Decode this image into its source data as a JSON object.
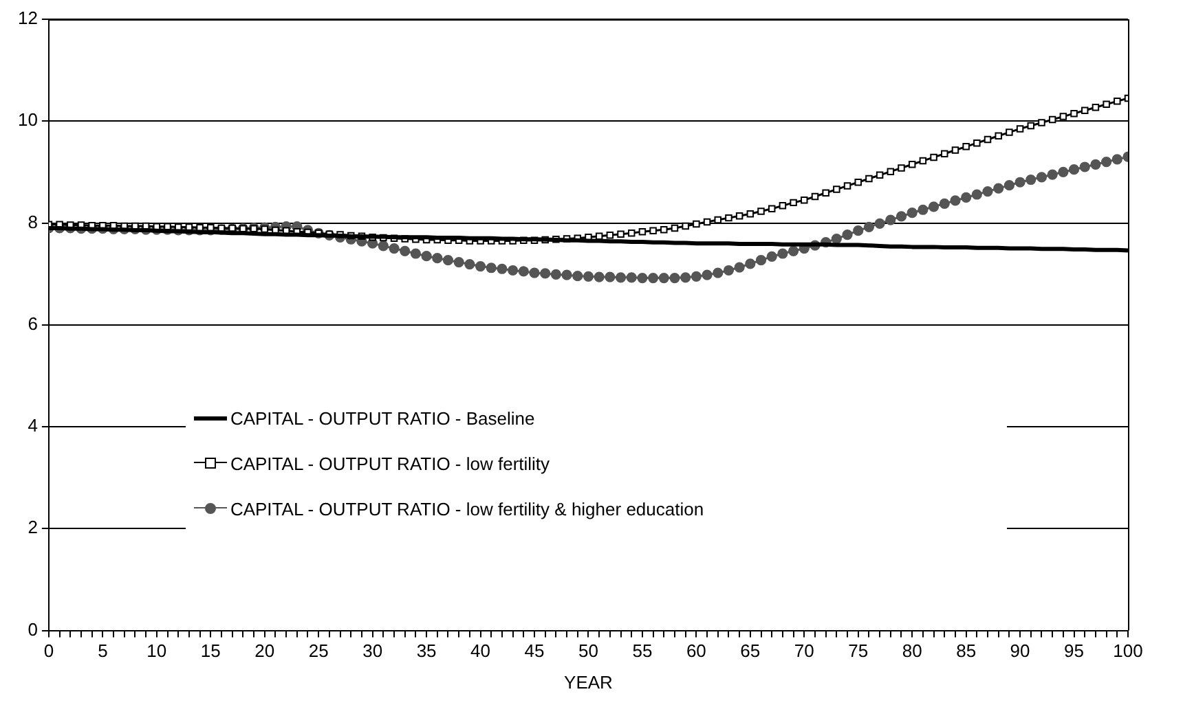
{
  "chart_data": {
    "type": "line",
    "xlabel": "YEAR",
    "x": [
      0,
      1,
      2,
      3,
      4,
      5,
      6,
      7,
      8,
      9,
      10,
      11,
      12,
      13,
      14,
      15,
      16,
      17,
      18,
      19,
      20,
      21,
      22,
      23,
      24,
      25,
      26,
      27,
      28,
      29,
      30,
      31,
      32,
      33,
      34,
      35,
      36,
      37,
      38,
      39,
      40,
      41,
      42,
      43,
      44,
      45,
      46,
      47,
      48,
      49,
      50,
      51,
      52,
      53,
      54,
      55,
      56,
      57,
      58,
      59,
      60,
      61,
      62,
      63,
      64,
      65,
      66,
      67,
      68,
      69,
      70,
      71,
      72,
      73,
      74,
      75,
      76,
      77,
      78,
      79,
      80,
      81,
      82,
      83,
      84,
      85,
      86,
      87,
      88,
      89,
      90,
      91,
      92,
      93,
      94,
      95,
      96,
      97,
      98,
      99,
      100
    ],
    "xlim": [
      0,
      100
    ],
    "xticks": [
      0,
      {
        "value": 1,
        "label": null
      },
      {
        "value": 2,
        "label": null
      },
      {
        "value": 3,
        "label": null
      },
      {
        "value": 4,
        "label": null
      },
      5,
      {
        "value": 6,
        "label": null
      },
      {
        "value": 7,
        "label": null
      },
      {
        "value": 8,
        "label": null
      },
      {
        "value": 9,
        "label": null
      },
      10,
      {
        "value": 11,
        "label": null
      },
      {
        "value": 12,
        "label": null
      },
      {
        "value": 13,
        "label": null
      },
      {
        "value": 14,
        "label": null
      },
      15,
      {
        "value": 16,
        "label": null
      },
      {
        "value": 17,
        "label": null
      },
      {
        "value": 18,
        "label": null
      },
      {
        "value": 19,
        "label": null
      },
      20,
      {
        "value": 21,
        "label": null
      },
      {
        "value": 22,
        "label": null
      },
      {
        "value": 23,
        "label": null
      },
      {
        "value": 24,
        "label": null
      },
      25,
      {
        "value": 26,
        "label": null
      },
      {
        "value": 27,
        "label": null
      },
      {
        "value": 28,
        "label": null
      },
      {
        "value": 29,
        "label": null
      },
      30,
      {
        "value": 31,
        "label": null
      },
      {
        "value": 32,
        "label": null
      },
      {
        "value": 33,
        "label": null
      },
      {
        "value": 34,
        "label": null
      },
      35,
      {
        "value": 36,
        "label": null
      },
      {
        "value": 37,
        "label": null
      },
      {
        "value": 38,
        "label": null
      },
      {
        "value": 39,
        "label": null
      },
      40,
      {
        "value": 41,
        "label": null
      },
      {
        "value": 42,
        "label": null
      },
      {
        "value": 43,
        "label": null
      },
      {
        "value": 44,
        "label": null
      },
      45,
      {
        "value": 46,
        "label": null
      },
      {
        "value": 47,
        "label": null
      },
      {
        "value": 48,
        "label": null
      },
      {
        "value": 49,
        "label": null
      },
      50,
      {
        "value": 51,
        "label": null
      },
      {
        "value": 52,
        "label": null
      },
      {
        "value": 53,
        "label": null
      },
      {
        "value": 54,
        "label": null
      },
      55,
      {
        "value": 56,
        "label": null
      },
      {
        "value": 57,
        "label": null
      },
      {
        "value": 58,
        "label": null
      },
      {
        "value": 59,
        "label": null
      },
      60,
      {
        "value": 61,
        "label": null
      },
      {
        "value": 62,
        "label": null
      },
      {
        "value": 63,
        "label": null
      },
      {
        "value": 64,
        "label": null
      },
      65,
      {
        "value": 66,
        "label": null
      },
      {
        "value": 67,
        "label": null
      },
      {
        "value": 68,
        "label": null
      },
      {
        "value": 69,
        "label": null
      },
      70,
      {
        "value": 71,
        "label": null
      },
      {
        "value": 72,
        "label": null
      },
      {
        "value": 73,
        "label": null
      },
      {
        "value": 74,
        "label": null
      },
      75,
      {
        "value": 76,
        "label": null
      },
      {
        "value": 77,
        "label": null
      },
      {
        "value": 78,
        "label": null
      },
      {
        "value": 79,
        "label": null
      },
      80,
      {
        "value": 81,
        "label": null
      },
      {
        "value": 82,
        "label": null
      },
      {
        "value": 83,
        "label": null
      },
      {
        "value": 84,
        "label": null
      },
      85,
      {
        "value": 86,
        "label": null
      },
      {
        "value": 87,
        "label": null
      },
      {
        "value": 88,
        "label": null
      },
      {
        "value": 89,
        "label": null
      },
      90,
      {
        "value": 91,
        "label": null
      },
      {
        "value": 92,
        "label": null
      },
      {
        "value": 93,
        "label": null
      },
      {
        "value": 94,
        "label": null
      },
      95,
      {
        "value": 96,
        "label": null
      },
      {
        "value": 97,
        "label": null
      },
      {
        "value": 98,
        "label": null
      },
      {
        "value": 99,
        "label": null
      },
      100
    ],
    "ylim": [
      0,
      12
    ],
    "yticks": [
      0,
      2,
      4,
      6,
      8,
      10,
      12
    ],
    "grid": "y",
    "legend": "bottom",
    "series": [
      {
        "name": "CAPITAL - OUTPUT RATIO - Baseline",
        "color": "#000000",
        "marker": "none",
        "values": [
          7.9,
          7.9,
          7.89,
          7.89,
          7.88,
          7.88,
          7.87,
          7.87,
          7.86,
          7.86,
          7.85,
          7.84,
          7.84,
          7.83,
          7.82,
          7.82,
          7.81,
          7.8,
          7.8,
          7.79,
          7.78,
          7.78,
          7.77,
          7.77,
          7.76,
          7.76,
          7.75,
          7.75,
          7.74,
          null,
          7.73,
          7.73,
          7.72,
          7.72,
          7.72,
          7.72,
          7.71,
          7.71,
          7.71,
          7.7,
          7.7,
          7.7,
          7.69,
          7.69,
          7.68,
          7.68,
          null,
          7.67,
          7.66,
          7.66,
          7.65,
          7.65,
          7.64,
          7.64,
          7.63,
          7.63,
          7.62,
          7.62,
          7.61,
          7.61,
          7.6,
          7.6,
          7.6,
          7.6,
          7.59,
          7.59,
          7.59,
          7.59,
          7.58,
          7.58,
          7.58,
          7.58,
          7.58,
          7.57,
          7.57,
          7.57,
          7.56,
          7.55,
          7.54,
          7.54,
          7.53,
          7.53,
          7.53,
          7.52,
          7.52,
          7.52,
          7.51,
          7.51,
          7.51,
          7.5,
          7.5,
          7.5,
          7.49,
          7.49,
          7.49,
          7.48,
          7.48,
          7.47,
          7.47,
          7.47,
          7.46
        ]
      },
      {
        "name": "CAPITAL - OUTPUT RATIO - low fertility",
        "color": "#000000",
        "marker": "square",
        "values": [
          7.97,
          7.97,
          7.96,
          7.96,
          7.95,
          7.95,
          7.95,
          7.94,
          7.94,
          7.94,
          7.93,
          7.93,
          7.92,
          7.92,
          7.91,
          7.91,
          7.9,
          7.9,
          7.89,
          7.89,
          7.88,
          7.86,
          7.85,
          7.83,
          7.82,
          7.8,
          7.78,
          7.77,
          7.75,
          7.74,
          7.72,
          7.71,
          7.7,
          7.69,
          7.68,
          7.67,
          7.67,
          7.66,
          7.66,
          7.65,
          7.65,
          7.65,
          7.65,
          7.65,
          7.66,
          7.66,
          7.67,
          7.68,
          7.69,
          7.7,
          7.72,
          7.74,
          7.76,
          7.78,
          7.8,
          7.83,
          7.85,
          7.87,
          7.9,
          7.94,
          7.98,
          8.02,
          8.06,
          8.1,
          8.14,
          8.18,
          8.23,
          8.28,
          8.34,
          8.4,
          8.45,
          8.52,
          8.59,
          8.66,
          8.73,
          8.8,
          8.87,
          8.94,
          9.01,
          9.08,
          9.15,
          9.22,
          9.29,
          9.36,
          9.43,
          9.5,
          9.57,
          9.64,
          9.71,
          9.78,
          9.85,
          9.91,
          9.97,
          10.03,
          10.09,
          10.15,
          10.21,
          10.27,
          10.33,
          10.39,
          10.45
        ]
      },
      {
        "name": "CAPITAL - OUTPUT RATIO - low fertility & higher education",
        "color": "#555555",
        "marker": "circle",
        "values": [
          7.9,
          7.9,
          7.9,
          7.89,
          7.89,
          7.89,
          7.88,
          7.88,
          7.88,
          7.87,
          7.87,
          7.87,
          7.86,
          7.86,
          7.86,
          7.86,
          7.87,
          7.88,
          7.89,
          7.9,
          7.91,
          7.92,
          7.93,
          7.93,
          7.86,
          7.8,
          7.76,
          7.72,
          7.68,
          7.64,
          7.6,
          7.55,
          7.5,
          7.45,
          7.4,
          7.35,
          7.31,
          7.27,
          7.23,
          7.19,
          7.15,
          7.12,
          7.1,
          7.07,
          7.05,
          7.02,
          7.01,
          6.99,
          6.98,
          6.96,
          6.95,
          6.94,
          6.94,
          6.93,
          6.93,
          6.92,
          6.92,
          6.92,
          6.92,
          6.93,
          6.95,
          6.98,
          7.02,
          7.07,
          7.13,
          7.2,
          7.27,
          7.34,
          7.4,
          7.45,
          7.5,
          7.56,
          7.62,
          7.69,
          7.77,
          7.85,
          7.92,
          7.99,
          8.06,
          8.13,
          8.2,
          8.26,
          8.32,
          8.38,
          8.44,
          8.5,
          8.56,
          8.62,
          8.68,
          8.74,
          8.8,
          8.85,
          8.9,
          8.95,
          9.0,
          9.05,
          9.1,
          9.15,
          9.2,
          9.25,
          9.3
        ]
      }
    ]
  }
}
